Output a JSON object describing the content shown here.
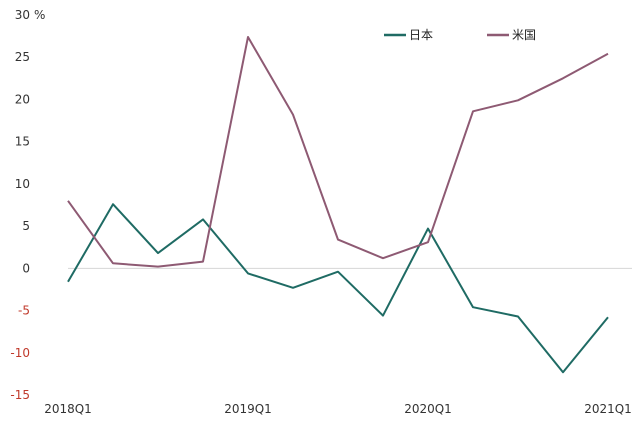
{
  "chart_data": {
    "type": "line",
    "unit_label": "%",
    "x": [
      "2018Q1",
      "2018Q2",
      "2018Q3",
      "2018Q4",
      "2019Q1",
      "2019Q2",
      "2019Q3",
      "2019Q4",
      "2020Q1",
      "2020Q2",
      "2020Q3",
      "2020Q4",
      "2021Q1"
    ],
    "x_tick_labels": [
      "2018Q1",
      "2019Q1",
      "2020Q1",
      "2021Q1"
    ],
    "ylim": [
      -15,
      30
    ],
    "y_ticks": [
      30,
      25,
      20,
      15,
      10,
      5,
      0,
      -5,
      -10,
      -15
    ],
    "zero_line": true,
    "grid": false,
    "legend_position": "top-right",
    "series": [
      {
        "name": "日本",
        "color": "#1f6b64",
        "values": [
          -1.6,
          7.6,
          1.8,
          5.8,
          -0.6,
          -2.3,
          -0.4,
          -5.6,
          4.7,
          -4.6,
          -5.7,
          -12.3,
          -5.8
        ]
      },
      {
        "name": "米国",
        "color": "#8e5a73",
        "values": [
          8.0,
          0.6,
          0.2,
          0.8,
          27.4,
          18.2,
          3.4,
          1.2,
          3.1,
          18.6,
          19.9,
          22.5,
          25.4
        ]
      }
    ]
  }
}
